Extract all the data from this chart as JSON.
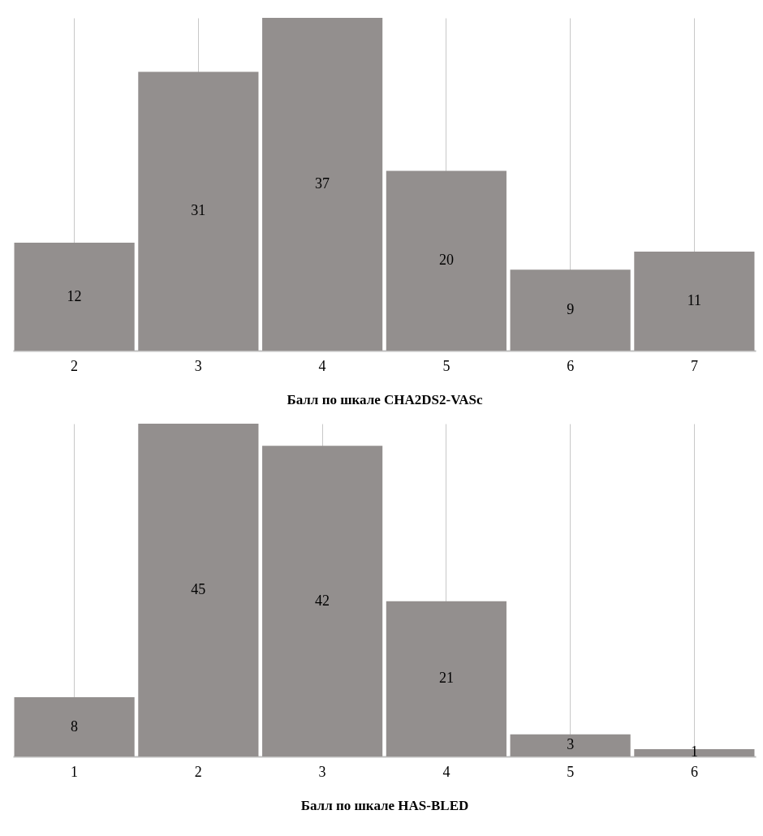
{
  "chart_data": [
    {
      "type": "bar",
      "xlabel": "Балл по шкале CHA2DS2-VASc",
      "categories": [
        "2",
        "3",
        "4",
        "5",
        "6",
        "7"
      ],
      "values": [
        12,
        31,
        37,
        20,
        9,
        11
      ],
      "color": "#938f8e",
      "data_labels": true,
      "grid": "x"
    },
    {
      "type": "bar",
      "xlabel": "Балл по шкале HAS-BLED",
      "categories": [
        "1",
        "2",
        "3",
        "4",
        "5",
        "6"
      ],
      "values": [
        8,
        45,
        42,
        21,
        3,
        1
      ],
      "color": "#938f8e",
      "data_labels": true,
      "grid": "x"
    }
  ]
}
